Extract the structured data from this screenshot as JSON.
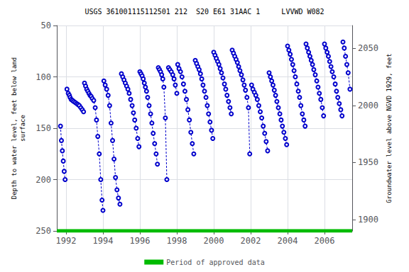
{
  "chart_data": {
    "type": "line",
    "title": "USGS 361001115112501 212  S20 E61 31AAC 1     LVVWD W082",
    "ylabel": "Depth to water level, feet below land\nsurface",
    "y2label": "Groundwater level above NGVD 1929, feet",
    "xlim": [
      1991.5,
      2007.5
    ],
    "xticks": [
      1992,
      1994,
      1996,
      1998,
      2000,
      2002,
      2004,
      2006
    ],
    "ylim": [
      250,
      50
    ],
    "yticks": [
      50,
      100,
      150,
      200,
      250
    ],
    "y2lim": [
      1890,
      2070
    ],
    "y2ticks": [
      1900,
      1950,
      2000,
      2050
    ],
    "grid": true,
    "legend": "bottom",
    "series": [
      {
        "color": "#0000cc",
        "line_style": "dashed",
        "marker": "open_circle",
        "x": [
          1991.7,
          1991.75,
          1991.8,
          1991.85,
          1991.9,
          1991.95
        ],
        "values": [
          148,
          162,
          172,
          182,
          192,
          200
        ]
      },
      {
        "color": "#0000cc",
        "line_style": "dashed",
        "marker": "open_circle",
        "x": [
          1992.05,
          1992.12,
          1992.18,
          1992.22,
          1992.28,
          1992.35,
          1992.42,
          1992.5,
          1992.58,
          1992.65,
          1992.72,
          1992.8,
          1992.88,
          1992.95
        ],
        "values": [
          112,
          116,
          118,
          120,
          122,
          123,
          124,
          125,
          126,
          127,
          128,
          130,
          132,
          134
        ]
      },
      {
        "color": "#0000cc",
        "line_style": "dashed",
        "marker": "open_circle",
        "x": [
          1993.0,
          1993.06,
          1993.12,
          1993.18,
          1993.24,
          1993.3,
          1993.36,
          1993.42,
          1993.5,
          1993.58,
          1993.65,
          1993.72,
          1993.8,
          1993.88,
          1993.95,
          1994.0
        ],
        "values": [
          106,
          109,
          112,
          114,
          116,
          118,
          119,
          121,
          123,
          130,
          142,
          158,
          175,
          200,
          220,
          230
        ]
      },
      {
        "color": "#0000cc",
        "line_style": "dashed",
        "marker": "open_circle",
        "x": [
          1994.05,
          1994.12,
          1994.2,
          1994.28,
          1994.36,
          1994.44,
          1994.52,
          1994.6,
          1994.68,
          1994.76,
          1994.84,
          1994.92
        ],
        "values": [
          104,
          108,
          112,
          118,
          128,
          145,
          162,
          180,
          198,
          210,
          218,
          224
        ]
      },
      {
        "color": "#0000cc",
        "line_style": "dashed",
        "marker": "open_circle",
        "x": [
          1995.0,
          1995.07,
          1995.14,
          1995.21,
          1995.28,
          1995.35,
          1995.42,
          1995.5,
          1995.58,
          1995.65,
          1995.72,
          1995.8,
          1995.88,
          1995.95
        ],
        "values": [
          97,
          100,
          103,
          106,
          109,
          112,
          116,
          122,
          128,
          135,
          142,
          150,
          160,
          168
        ]
      },
      {
        "color": "#0000cc",
        "line_style": "dashed",
        "marker": "open_circle",
        "x": [
          1996.0,
          1996.06,
          1996.12,
          1996.18,
          1996.24,
          1996.3,
          1996.36,
          1996.42,
          1996.5,
          1996.58,
          1996.65,
          1996.72,
          1996.8,
          1996.88,
          1996.95
        ],
        "values": [
          95,
          97,
          99,
          102,
          106,
          110,
          114,
          120,
          128,
          136,
          145,
          155,
          165,
          175,
          185
        ]
      },
      {
        "color": "#0000cc",
        "line_style": "dashed",
        "marker": "open_circle",
        "x": [
          1997.0,
          1997.06,
          1997.12,
          1997.18,
          1997.24,
          1997.3,
          1997.38,
          1997.46
        ],
        "values": [
          91,
          93,
          95,
          98,
          102,
          110,
          140,
          200
        ]
      },
      {
        "color": "#0000cc",
        "line_style": "dashed",
        "marker": "open_circle",
        "x": [
          1997.55,
          1997.62,
          1997.7,
          1997.78,
          1997.85,
          1997.92,
          1998.0
        ],
        "values": [
          91,
          93,
          95,
          98,
          102,
          108,
          116
        ]
      },
      {
        "color": "#0000cc",
        "line_style": "dashed",
        "marker": "open_circle",
        "x": [
          1998.05,
          1998.12,
          1998.2,
          1998.28,
          1998.36,
          1998.44,
          1998.52,
          1998.6,
          1998.68,
          1998.76,
          1998.84,
          1998.92
        ],
        "values": [
          88,
          92,
          95,
          100,
          107,
          114,
          122,
          132,
          142,
          154,
          165,
          175
        ]
      },
      {
        "color": "#0000cc",
        "line_style": "dashed",
        "marker": "open_circle",
        "x": [
          1999.0,
          1999.07,
          1999.14,
          1999.21,
          1999.28,
          1999.35,
          1999.42,
          1999.5,
          1999.58,
          1999.65,
          1999.72,
          1999.8,
          1999.88,
          1999.95
        ],
        "values": [
          84,
          87,
          90,
          93,
          97,
          102,
          108,
          114,
          120,
          128,
          136,
          144,
          152,
          160
        ]
      },
      {
        "color": "#0000cc",
        "line_style": "dashed",
        "marker": "open_circle",
        "x": [
          2000.0,
          2000.07,
          2000.14,
          2000.21,
          2000.28,
          2000.35,
          2000.42,
          2000.5,
          2000.58,
          2000.65,
          2000.72,
          2000.8,
          2000.88,
          2000.95
        ],
        "values": [
          76,
          79,
          82,
          85,
          88,
          92,
          96,
          101,
          107,
          112,
          118,
          124,
          130,
          136
        ]
      },
      {
        "color": "#0000cc",
        "line_style": "dashed",
        "marker": "open_circle",
        "x": [
          2001.0,
          2001.07,
          2001.14,
          2001.21,
          2001.28,
          2001.35,
          2001.42,
          2001.5,
          2001.58,
          2001.65,
          2001.72,
          2001.8,
          2001.88,
          2001.95
        ],
        "values": [
          74,
          77,
          80,
          83,
          86,
          90,
          94,
          98,
          103,
          108,
          113,
          120,
          130,
          175
        ]
      },
      {
        "color": "#0000cc",
        "line_style": "dashed",
        "marker": "open_circle",
        "x": [
          2002.05,
          2002.12,
          2002.2,
          2002.28,
          2002.36,
          2002.44,
          2002.52,
          2002.6,
          2002.68,
          2002.76,
          2002.84,
          2002.92
        ],
        "values": [
          108,
          112,
          115,
          118,
          122,
          128,
          134,
          140,
          148,
          155,
          163,
          172
        ]
      },
      {
        "color": "#0000cc",
        "line_style": "dashed",
        "marker": "open_circle",
        "x": [
          2003.0,
          2003.07,
          2003.14,
          2003.21,
          2003.28,
          2003.35,
          2003.42,
          2003.5,
          2003.58,
          2003.65,
          2003.72,
          2003.8,
          2003.88,
          2003.95
        ],
        "values": [
          96,
          100,
          104,
          108,
          113,
          118,
          124,
          130,
          136,
          142,
          148,
          154,
          160,
          166
        ]
      },
      {
        "color": "#0000cc",
        "line_style": "dashed",
        "marker": "open_circle",
        "x": [
          2004.0,
          2004.07,
          2004.14,
          2004.21,
          2004.28,
          2004.35,
          2004.42,
          2004.5,
          2004.58,
          2004.65,
          2004.72,
          2004.8,
          2004.88,
          2004.95
        ],
        "values": [
          70,
          74,
          78,
          83,
          88,
          94,
          100,
          107,
          114,
          120,
          128,
          136,
          142,
          148
        ]
      },
      {
        "color": "#0000cc",
        "line_style": "dashed",
        "marker": "open_circle",
        "x": [
          2005.0,
          2005.07,
          2005.14,
          2005.21,
          2005.28,
          2005.35,
          2005.42,
          2005.5,
          2005.58,
          2005.65,
          2005.72,
          2005.8,
          2005.88,
          2005.95
        ],
        "values": [
          68,
          72,
          76,
          80,
          84,
          88,
          93,
          98,
          104,
          110,
          116,
          122,
          130,
          138
        ]
      },
      {
        "color": "#0000cc",
        "line_style": "dashed",
        "marker": "open_circle",
        "x": [
          2006.0,
          2006.07,
          2006.14,
          2006.21,
          2006.28,
          2006.35,
          2006.42,
          2006.5,
          2006.58,
          2006.65,
          2006.72,
          2006.8,
          2006.88,
          2006.95
        ],
        "values": [
          68,
          72,
          76,
          80,
          85,
          90,
          95,
          100,
          107,
          114,
          120,
          126,
          132,
          138
        ]
      },
      {
        "color": "#0000cc",
        "line_style": "dashed",
        "marker": "open_circle",
        "x": [
          2007.0,
          2007.07,
          2007.14,
          2007.21,
          2007.28,
          2007.38
        ],
        "values": [
          66,
          72,
          80,
          88,
          96,
          112
        ]
      },
      {
        "name": "Period of approved data",
        "color": "#00bb00",
        "line_style": "solid",
        "x": [
          1991.5,
          2007.5
        ],
        "values": [
          250,
          250
        ]
      }
    ]
  }
}
